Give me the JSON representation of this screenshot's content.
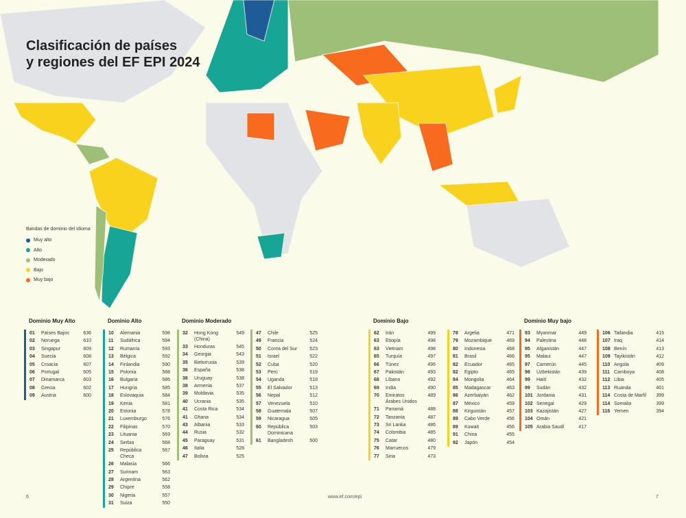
{
  "header": {
    "title_line1": "Clasificación de países",
    "title_line2": "y regiones del EF EPI 2024"
  },
  "legend": {
    "title": "Bandas de dominio del idioma",
    "items": [
      {
        "label": "Muy alto",
        "color": "#1f5b96"
      },
      {
        "label": "Alto",
        "color": "#17a596"
      },
      {
        "label": "Moderado",
        "color": "#9dbf78"
      },
      {
        "label": "Bajo",
        "color": "#f8d21c"
      },
      {
        "label": "Muy bajo",
        "color": "#f86a1e"
      }
    ]
  },
  "tables": [
    {
      "title": "Dominio Muy Alto",
      "color": "#1f5b96",
      "columns": [
        [
          [
            "01",
            "Países Bajos",
            636
          ],
          [
            "02",
            "Noruega",
            610
          ],
          [
            "03",
            "Singapur",
            609
          ],
          [
            "04",
            "Suecia",
            608
          ],
          [
            "05",
            "Croacia",
            607
          ],
          [
            "06",
            "Portugal",
            605
          ],
          [
            "07",
            "Dinamarca",
            603
          ],
          [
            "08",
            "Grecia",
            602
          ],
          [
            "09",
            "Austria",
            600
          ]
        ]
      ]
    },
    {
      "title": "Dominio Alto",
      "color": "#17a596",
      "columns": [
        [
          [
            "10",
            "Alemania",
            598
          ],
          [
            "11",
            "Sudáfrica",
            594
          ],
          [
            "12",
            "Rumanía",
            593
          ],
          [
            "13",
            "Bélgica",
            592
          ],
          [
            "14",
            "Finlandia",
            590
          ],
          [
            "15",
            "Polonia",
            588
          ],
          [
            "16",
            "Bulgaria",
            586
          ],
          [
            "17",
            "Hungría",
            585
          ],
          [
            "18",
            "Eslovaquia",
            584
          ],
          [
            "19",
            "Kenia",
            581
          ],
          [
            "20",
            "Estonia",
            578
          ],
          [
            "21",
            "Luxemburgo",
            576
          ],
          [
            "22",
            "Filipinas",
            570
          ],
          [
            "23",
            "Lituania",
            569
          ],
          [
            "24",
            "Serbia",
            568
          ],
          [
            "25",
            "República Checa",
            567
          ],
          [
            "26",
            "Malasia",
            566
          ],
          [
            "27",
            "Surinam",
            563
          ],
          [
            "28",
            "Argentina",
            562
          ],
          [
            "29",
            "Chipre",
            558
          ],
          [
            "30",
            "Nigeria",
            557
          ],
          [
            "31",
            "Suiza",
            550
          ]
        ]
      ]
    },
    {
      "title": "Dominio Moderado",
      "color": "#9dbf78",
      "columns": [
        [
          [
            "32",
            "Hong Kong (China)",
            549
          ],
          [
            "33",
            "Honduras",
            545
          ],
          [
            "34",
            "Georgia",
            543
          ],
          [
            "35",
            "Bielorrusia",
            539
          ],
          [
            "36",
            "España",
            538
          ],
          [
            "36",
            "Uruguay",
            538
          ],
          [
            "38",
            "Armenia",
            537
          ],
          [
            "39",
            "Moldavia",
            535
          ],
          [
            "40",
            "Ucrania",
            535
          ],
          [
            "41",
            "Costa Rica",
            534
          ],
          [
            "41",
            "Ghana",
            534
          ],
          [
            "43",
            "Albania",
            533
          ],
          [
            "44",
            "Rusia",
            532
          ],
          [
            "45",
            "Paraguay",
            531
          ],
          [
            "46",
            "Italia",
            528
          ],
          [
            "47",
            "Bolivia",
            525
          ]
        ],
        [
          [
            "47",
            "Chile",
            525
          ],
          [
            "49",
            "Francia",
            524
          ],
          [
            "50",
            "Corea del Sur",
            523
          ],
          [
            "51",
            "Israel",
            522
          ],
          [
            "52",
            "Cuba",
            520
          ],
          [
            "53",
            "Perú",
            519
          ],
          [
            "54",
            "Uganda",
            518
          ],
          [
            "55",
            "El Salvador",
            513
          ],
          [
            "56",
            "Nepal",
            512
          ],
          [
            "57",
            "Venezuela",
            510
          ],
          [
            "58",
            "Guatemala",
            507
          ],
          [
            "59",
            "Nicaragua",
            505
          ],
          [
            "60",
            "República Dominicana",
            503
          ],
          [
            "61",
            "Bangladesh",
            500
          ]
        ]
      ]
    },
    {
      "title": "Dominio Bajo",
      "color": "#f8d21c",
      "columns": [
        [
          [
            "62",
            "Irán",
            499
          ],
          [
            "63",
            "Etiopía",
            498
          ],
          [
            "63",
            "Vietnam",
            498
          ],
          [
            "65",
            "Turquía",
            497
          ],
          [
            "66",
            "Túnez",
            496
          ],
          [
            "67",
            "Pakistán",
            493
          ],
          [
            "68",
            "Líbano",
            492
          ],
          [
            "69",
            "India",
            490
          ],
          [
            "70",
            "Emiratos Árabes Unidos",
            489
          ],
          [
            "71",
            "Panamá",
            488
          ],
          [
            "72",
            "Tanzania",
            487
          ],
          [
            "73",
            "Sri Lanka",
            486
          ],
          [
            "74",
            "Colombia",
            485
          ],
          [
            "75",
            "Catar",
            480
          ],
          [
            "76",
            "Marruecos",
            479
          ],
          [
            "77",
            "Siria",
            473
          ]
        ],
        [
          [
            "78",
            "Argelia",
            471
          ],
          [
            "79",
            "Mozambique",
            469
          ],
          [
            "80",
            "Indonesia",
            468
          ],
          [
            "81",
            "Brasil",
            466
          ],
          [
            "82",
            "Ecuador",
            465
          ],
          [
            "82",
            "Egipto",
            465
          ],
          [
            "84",
            "Mongolia",
            464
          ],
          [
            "85",
            "Madagascar",
            463
          ],
          [
            "86",
            "Azerbaiyán",
            462
          ],
          [
            "87",
            "México",
            459
          ],
          [
            "88",
            "Kirguistán",
            457
          ],
          [
            "89",
            "Cabo Verde",
            456
          ],
          [
            "89",
            "Kuwait",
            456
          ],
          [
            "91",
            "China",
            455
          ],
          [
            "92",
            "Japón",
            454
          ]
        ]
      ]
    },
    {
      "title": "Dominio Muy bajo",
      "color": "#f86a1e",
      "columns": [
        [
          [
            "93",
            "Myanmar",
            449
          ],
          [
            "94",
            "Palestina",
            448
          ],
          [
            "95",
            "Afganistán",
            447
          ],
          [
            "95",
            "Malaui",
            447
          ],
          [
            "97",
            "Camerún",
            445
          ],
          [
            "98",
            "Uzbekistán",
            439
          ],
          [
            "99",
            "Haití",
            432
          ],
          [
            "99",
            "Sudán",
            432
          ],
          [
            "101",
            "Jordania",
            431
          ],
          [
            "102",
            "Senegal",
            429
          ],
          [
            "103",
            "Kazajistán",
            427
          ],
          [
            "104",
            "Omán",
            421
          ],
          [
            "105",
            "Arabia Saudí",
            417
          ]
        ],
        [
          [
            "106",
            "Tailandia",
            415
          ],
          [
            "107",
            "Iraq",
            414
          ],
          [
            "108",
            "Benín",
            413
          ],
          [
            "109",
            "Tayikistán",
            412
          ],
          [
            "110",
            "Angola",
            409
          ],
          [
            "111",
            "Camboya",
            408
          ],
          [
            "112",
            "Libia",
            405
          ],
          [
            "113",
            "Ruanda",
            401
          ],
          [
            "114",
            "Costa de Marfil",
            399
          ],
          [
            "114",
            "Somalia",
            399
          ],
          [
            "116",
            "Yemen",
            394
          ]
        ]
      ]
    }
  ],
  "footer": {
    "page_left": "6",
    "url": "www.ef.com/epi",
    "page_right": "7"
  }
}
